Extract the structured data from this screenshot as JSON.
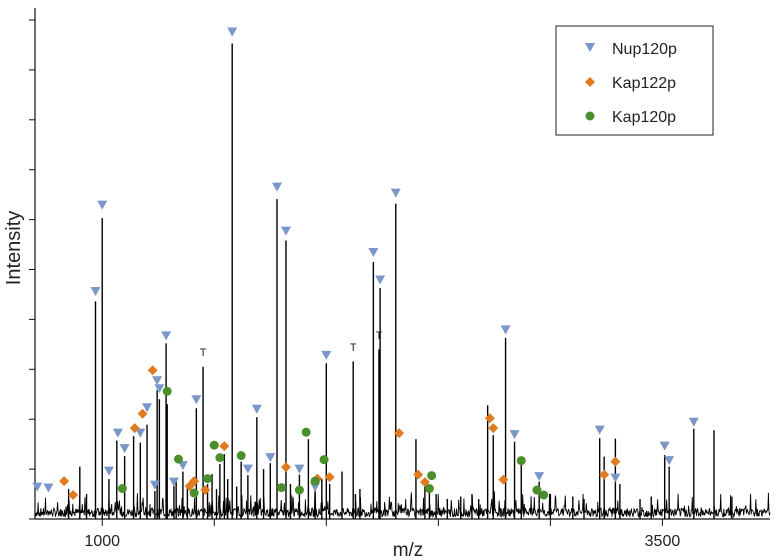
{
  "chart_data": {
    "type": "line",
    "title": "",
    "xlabel": "m/z",
    "ylabel": "Intensity",
    "xlim": [
      700,
      3980
    ],
    "ylim": [
      0,
      100
    ],
    "x_ticks": [
      1000,
      1500,
      2000,
      2500,
      3000,
      3500
    ],
    "x_tick_labels": [
      "1000",
      "",
      "",
      "",
      "",
      "3500"
    ],
    "y_ticks": [
      0,
      10,
      20,
      30,
      40,
      50,
      60,
      70,
      80,
      90,
      100
    ],
    "grid": false,
    "legend_position": "top-right",
    "series": [
      {
        "name": "Nup120p",
        "marker": "triangle-down",
        "color": "#7b96c8",
        "points": [
          [
            710,
            6.3
          ],
          [
            760,
            6.1
          ],
          [
            970,
            45.5
          ],
          [
            1000,
            62.8
          ],
          [
            1030,
            9.5
          ],
          [
            1070,
            17.1
          ],
          [
            1100,
            14.0
          ],
          [
            1170,
            17.1
          ],
          [
            1200,
            22.2
          ],
          [
            1235,
            6.7
          ],
          [
            1245,
            27.6
          ],
          [
            1255,
            26.0
          ],
          [
            1285,
            36.6
          ],
          [
            1320,
            7.3
          ],
          [
            1360,
            10.6
          ],
          [
            1420,
            23.8
          ],
          [
            1580,
            97.5
          ],
          [
            1650,
            9.9
          ],
          [
            1690,
            21.9
          ],
          [
            1750,
            12.2
          ],
          [
            1780,
            66.4
          ],
          [
            1820,
            57.6
          ],
          [
            1880,
            9.9
          ],
          [
            1950,
            6.3
          ],
          [
            2000,
            32.7
          ],
          [
            2210,
            53.3
          ],
          [
            2240,
            47.8
          ],
          [
            2310,
            65.2
          ],
          [
            2800,
            37.8
          ],
          [
            2840,
            16.8
          ],
          [
            2950,
            8.4
          ],
          [
            3220,
            17.7
          ],
          [
            3290,
            8.1
          ],
          [
            3510,
            14.5
          ],
          [
            3530,
            11.6
          ],
          [
            3640,
            19.3
          ]
        ]
      },
      {
        "name": "Kap122p",
        "marker": "diamond",
        "color": "#e07b20",
        "points": [
          [
            830,
            7.6
          ],
          [
            870,
            4.8
          ],
          [
            1145,
            18.2
          ],
          [
            1180,
            21.1
          ],
          [
            1225,
            29.8
          ],
          [
            1390,
            6.6
          ],
          [
            1410,
            7.6
          ],
          [
            1460,
            5.8
          ],
          [
            1545,
            14.6
          ],
          [
            1820,
            10.4
          ],
          [
            1960,
            8.1
          ],
          [
            2015,
            8.4
          ],
          [
            2325,
            17.2
          ],
          [
            2410,
            8.9
          ],
          [
            2440,
            7.4
          ],
          [
            2730,
            20.2
          ],
          [
            2745,
            18.2
          ],
          [
            2790,
            7.9
          ],
          [
            3240,
            8.9
          ],
          [
            3290,
            11.5
          ]
        ]
      },
      {
        "name": "Kap120p",
        "marker": "circle",
        "color": "#4a8f2c",
        "points": [
          [
            1090,
            6.1
          ],
          [
            1290,
            25.6
          ],
          [
            1340,
            12.0
          ],
          [
            1410,
            5.2
          ],
          [
            1470,
            8.1
          ],
          [
            1500,
            14.8
          ],
          [
            1525,
            12.3
          ],
          [
            1620,
            12.7
          ],
          [
            1800,
            6.3
          ],
          [
            1880,
            5.8
          ],
          [
            1910,
            17.4
          ],
          [
            1950,
            7.6
          ],
          [
            1990,
            11.9
          ],
          [
            2460,
            6.1
          ],
          [
            2470,
            8.7
          ],
          [
            2870,
            11.7
          ],
          [
            2940,
            5.8
          ],
          [
            2970,
            4.8
          ]
        ]
      },
      {
        "name": "T",
        "marker": "text",
        "color": "#222222",
        "points": [
          [
            1450,
            32.7
          ],
          [
            2120,
            33.7
          ],
          [
            2235,
            36.1
          ]
        ]
      }
    ],
    "spectrum_peaks": [
      [
        1000,
        60.3
      ],
      [
        970,
        43.6
      ],
      [
        1030,
        8.0
      ],
      [
        1065,
        15.7
      ],
      [
        1100,
        12.6
      ],
      [
        1140,
        16.6
      ],
      [
        1170,
        15.3
      ],
      [
        1200,
        18.9
      ],
      [
        1235,
        5.6
      ],
      [
        1245,
        25.8
      ],
      [
        1255,
        24.0
      ],
      [
        1285,
        35.2
      ],
      [
        1320,
        6.6
      ],
      [
        1360,
        9.5
      ],
      [
        1420,
        22.2
      ],
      [
        1450,
        30.5
      ],
      [
        1580,
        95.3
      ],
      [
        1650,
        8.8
      ],
      [
        1690,
        20.4
      ],
      [
        1750,
        11.2
      ],
      [
        1780,
        64.1
      ],
      [
        1820,
        55.8
      ],
      [
        1880,
        8.9
      ],
      [
        1950,
        5.7
      ],
      [
        2000,
        31.2
      ],
      [
        2120,
        31.6
      ],
      [
        2210,
        51.5
      ],
      [
        2240,
        46.3
      ],
      [
        2235,
        34.0
      ],
      [
        2310,
        63.2
      ],
      [
        2400,
        16.0
      ],
      [
        2460,
        5.5
      ],
      [
        2720,
        22.8
      ],
      [
        2745,
        16.8
      ],
      [
        2800,
        36.3
      ],
      [
        2840,
        15.5
      ],
      [
        2870,
        11.0
      ],
      [
        2950,
        7.5
      ],
      [
        3220,
        16.2
      ],
      [
        3240,
        12.5
      ],
      [
        3290,
        16.1
      ],
      [
        3310,
        7.0
      ],
      [
        3510,
        12.8
      ],
      [
        3530,
        10.5
      ],
      [
        3640,
        18.1
      ],
      [
        3730,
        17.8
      ],
      [
        3810,
        4.5
      ],
      [
        1470,
        7.0
      ],
      [
        1525,
        11.0
      ],
      [
        1620,
        11.5
      ],
      [
        1545,
        13.0
      ],
      [
        2015,
        7.0
      ],
      [
        2070,
        9.5
      ],
      [
        2130,
        5.0
      ],
      [
        2150,
        6.0
      ],
      [
        2440,
        6.5
      ],
      [
        2490,
        5.0
      ],
      [
        2540,
        4.0
      ],
      [
        2600,
        4.5
      ],
      [
        2650,
        5.0
      ],
      [
        2680,
        4.0
      ],
      [
        850,
        6.0
      ],
      [
        900,
        10.5
      ],
      [
        930,
        5.0
      ],
      [
        1290,
        23.0
      ],
      [
        1330,
        8.0
      ],
      [
        1380,
        7.0
      ],
      [
        1490,
        9.0
      ],
      [
        1510,
        6.0
      ],
      [
        1560,
        8.0
      ],
      [
        1600,
        6.5
      ],
      [
        1720,
        10.0
      ],
      [
        1840,
        7.0
      ],
      [
        1920,
        16.0
      ],
      [
        1980,
        8.0
      ],
      [
        3000,
        5.0
      ],
      [
        3100,
        4.5
      ],
      [
        3150,
        4.0
      ],
      [
        3400,
        4.0
      ],
      [
        3450,
        4.5
      ]
    ]
  },
  "legend": {
    "items": [
      {
        "label": "Nup120p",
        "marker": "triangle-down",
        "color": "#7b96c8"
      },
      {
        "label": "Kap122p",
        "marker": "diamond",
        "color": "#e07b20"
      },
      {
        "label": "Kap120p",
        "marker": "circle",
        "color": "#4a8f2c"
      }
    ]
  },
  "annotation_label": "T"
}
